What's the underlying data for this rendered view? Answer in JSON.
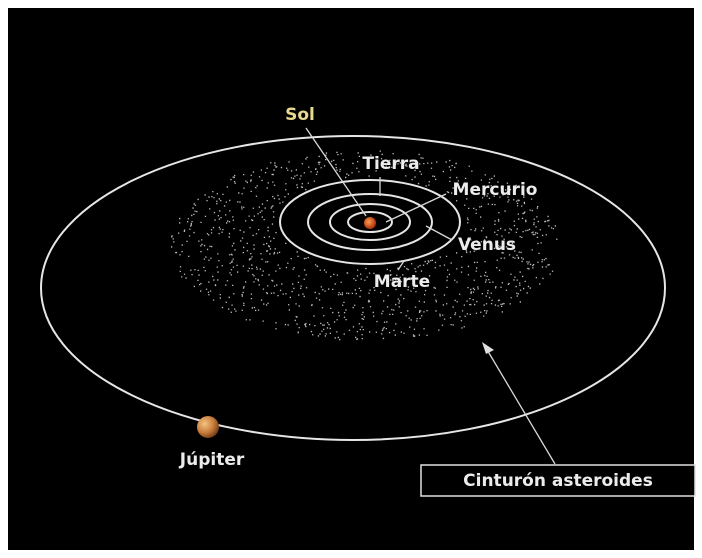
{
  "labels": {
    "sun": "Sol",
    "earth": "Tierra",
    "mercury": "Mercurio",
    "venus": "Venus",
    "mars": "Marte",
    "jupiter": "Júpiter",
    "belt": "Cinturón asteroides"
  }
}
